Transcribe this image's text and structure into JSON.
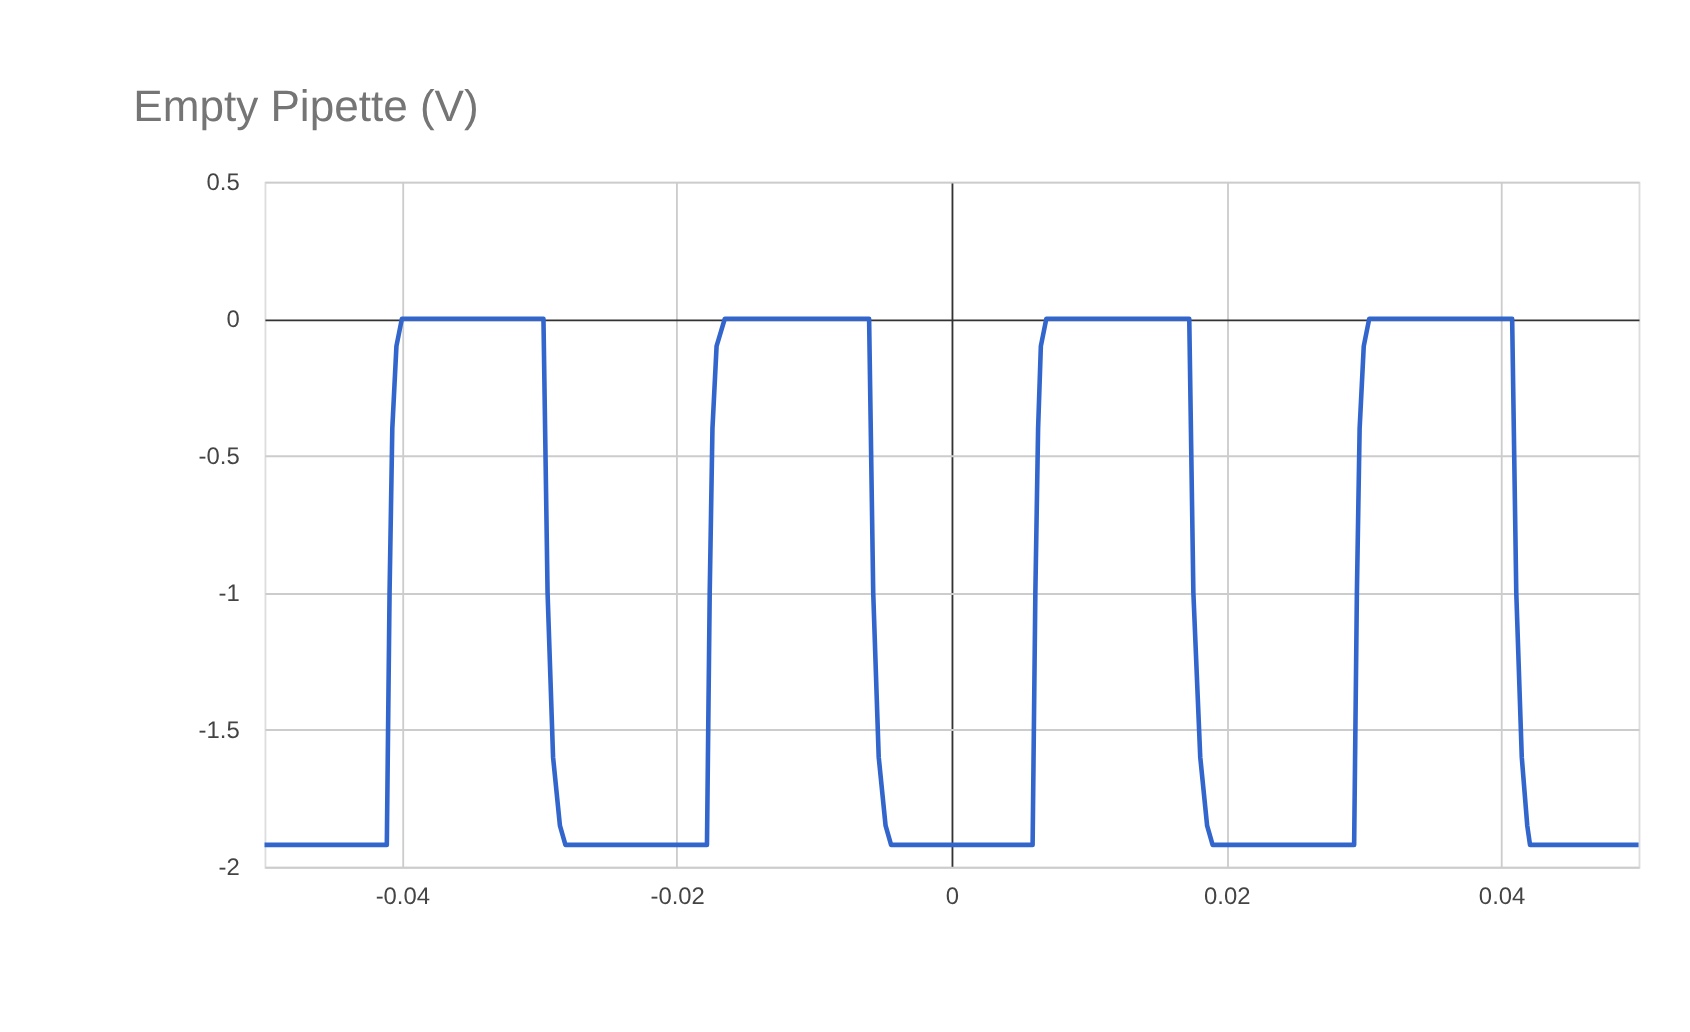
{
  "chart_data": {
    "type": "line",
    "title": "Empty Pipette (V)",
    "x": [
      -0.05,
      -0.0411,
      -0.0409,
      -0.0407,
      -0.0404,
      -0.04,
      -0.0297,
      -0.0294,
      -0.029,
      -0.0285,
      -0.0281,
      -0.0178,
      -0.0176,
      -0.0174,
      -0.0171,
      -0.0165,
      -0.006,
      -0.0057,
      -0.0053,
      -0.0048,
      -0.0044,
      0.0059,
      0.0061,
      0.0063,
      0.0065,
      0.0069,
      0.0173,
      0.0176,
      0.0181,
      0.0186,
      0.019,
      0.0293,
      0.0295,
      0.0297,
      0.03,
      0.0304,
      0.0408,
      0.0411,
      0.0415,
      0.0419,
      0.0421,
      0.05
    ],
    "series": [
      {
        "color": "#3366cc",
        "values": [
          -1.92,
          -1.92,
          -1.0,
          -0.4,
          -0.1,
          0,
          0,
          -1.0,
          -1.6,
          -1.85,
          -1.92,
          -1.92,
          -1.0,
          -0.4,
          -0.1,
          0,
          0,
          -1.0,
          -1.6,
          -1.85,
          -1.92,
          -1.92,
          -1.0,
          -0.4,
          -0.1,
          0,
          0,
          -1.0,
          -1.6,
          -1.85,
          -1.92,
          -1.92,
          -1.0,
          -0.4,
          -0.1,
          0,
          0,
          -1.0,
          -1.6,
          -1.85,
          -1.92,
          -1.92
        ]
      }
    ],
    "xlim": [
      -0.05,
      0.05
    ],
    "xticks": [
      -0.04,
      -0.02,
      0,
      0.02,
      0.04
    ],
    "ylim": [
      -2,
      0.5
    ],
    "yticks": [
      -2,
      -1.5,
      -1,
      -0.5,
      0,
      0.5
    ],
    "grid": true,
    "marker": "none",
    "line_style": "solid"
  }
}
